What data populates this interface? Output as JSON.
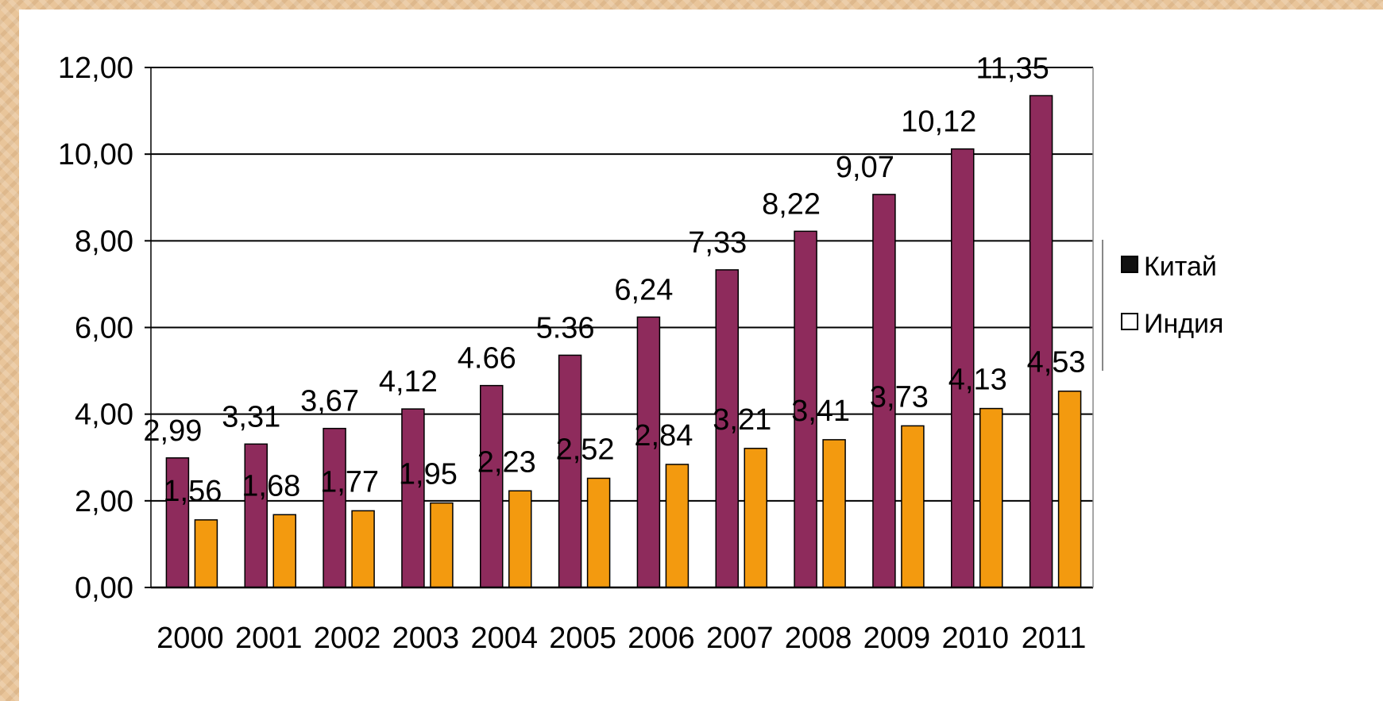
{
  "chart_data": {
    "type": "bar",
    "categories": [
      "2000",
      "2001",
      "2002",
      "2003",
      "2004",
      "2005",
      "2006",
      "2007",
      "2008",
      "2009",
      "2010",
      "2011"
    ],
    "series": [
      {
        "name": "Китай",
        "values": [
          2.99,
          3.31,
          3.67,
          4.12,
          4.66,
          5.36,
          6.24,
          7.33,
          8.22,
          9.07,
          10.12,
          11.35
        ],
        "labels": [
          "2,99",
          "3,31",
          "3,67",
          "4,12",
          "4.66",
          "5.36",
          "6,24",
          "7,33",
          "8,22",
          "9,07",
          "10,12",
          "11,35"
        ],
        "color": "#8e2b5c"
      },
      {
        "name": "Индия",
        "values": [
          1.56,
          1.68,
          1.77,
          1.95,
          2.23,
          2.52,
          2.84,
          3.21,
          3.41,
          3.73,
          4.13,
          4.53
        ],
        "labels": [
          "1,56",
          "1,68",
          "1,77",
          "1,95",
          "2,23",
          "2,52",
          "2,84",
          "3,21",
          "3,41",
          "3,73",
          "4,13",
          "4,53"
        ],
        "color": "#f39a0f"
      }
    ],
    "y_ticks": [
      "0,00",
      "2,00",
      "4,00",
      "6,00",
      "8,00",
      "10,00",
      "12,00"
    ],
    "ylim": [
      0,
      12
    ],
    "grid": true,
    "legend_position": "right"
  }
}
